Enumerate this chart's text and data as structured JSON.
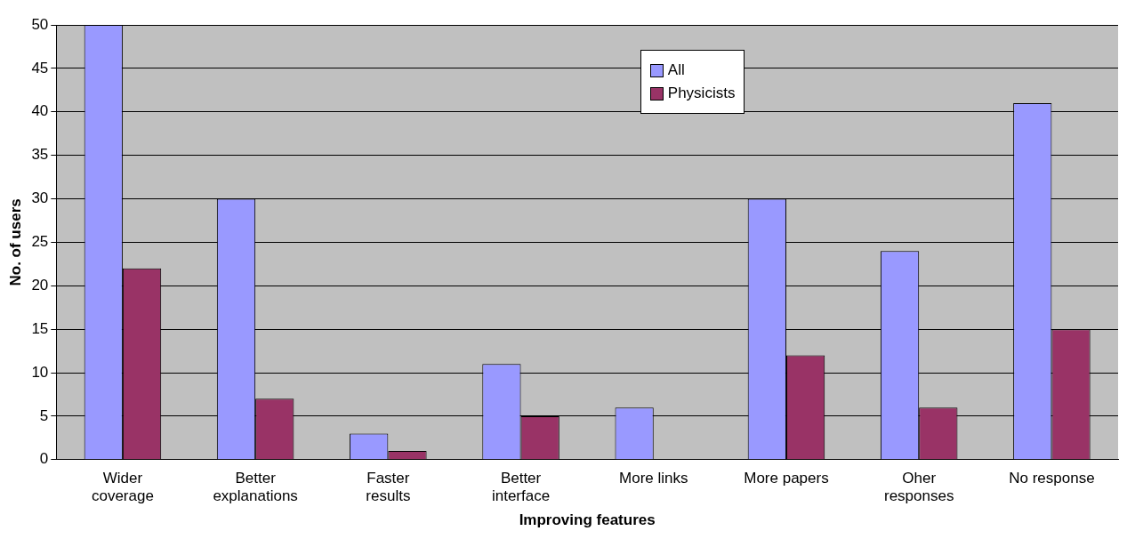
{
  "chart_data": {
    "type": "bar",
    "xlabel": "Improving features",
    "ylabel": "No. of users",
    "categories": [
      "Wider\ncoverage",
      "Better\nexplanations",
      "Faster\nresults",
      "Better\ninterface",
      "More links",
      "More papers",
      "Oher\nresponses",
      "No response"
    ],
    "series": [
      {
        "name": "All",
        "color": "#9999ff",
        "values": [
          50,
          30,
          3,
          11,
          6,
          30,
          24,
          41
        ]
      },
      {
        "name": "Physicists",
        "color": "#993366",
        "values": [
          22,
          7,
          1,
          5,
          0,
          12,
          6,
          15
        ]
      }
    ],
    "ylim": [
      0,
      50
    ],
    "yticks": [
      0,
      5,
      10,
      15,
      20,
      25,
      30,
      35,
      40,
      45,
      50
    ],
    "grid": "y",
    "legend": "top"
  }
}
